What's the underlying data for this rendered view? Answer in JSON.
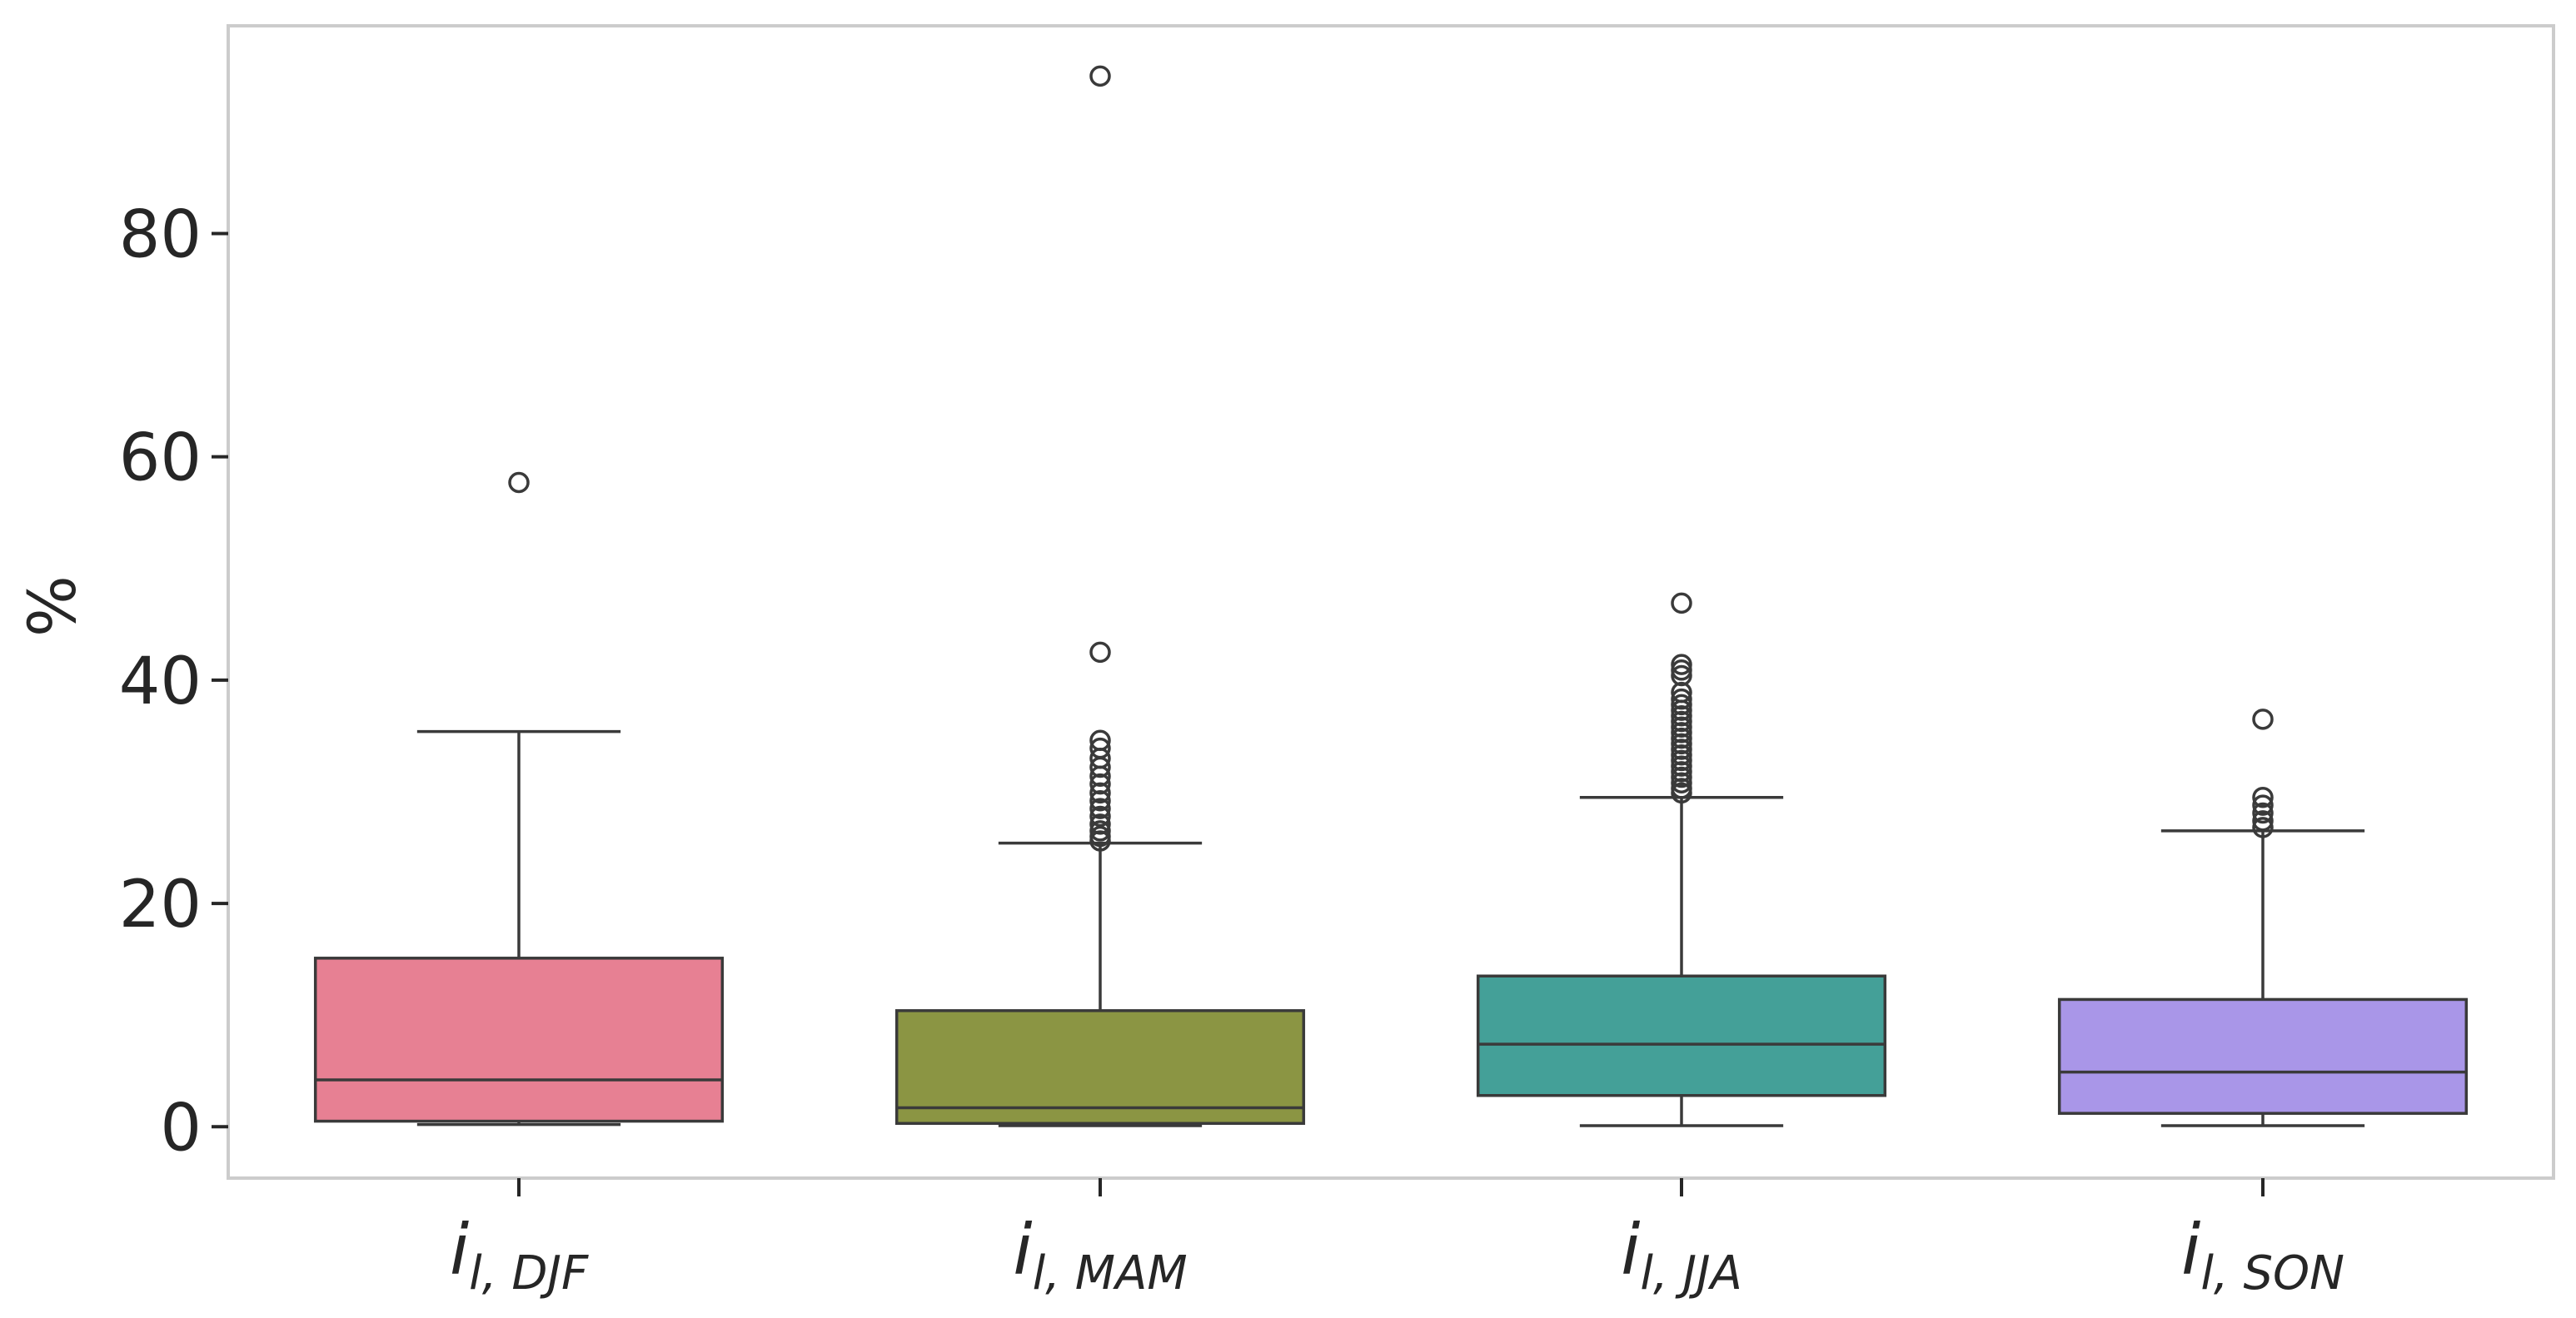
{
  "chart_data": {
    "type": "box",
    "title": "",
    "xlabel": "",
    "ylabel": "%",
    "ylim": [
      -4.6,
      98.6
    ],
    "yticks": [
      0,
      20,
      40,
      60,
      80
    ],
    "grid": false,
    "legend": "none",
    "categories": [
      {
        "main": "i",
        "sub": "l, DJF"
      },
      {
        "main": "i",
        "sub": "l, MAM"
      },
      {
        "main": "i",
        "sub": "l, JJA"
      },
      {
        "main": "i",
        "sub": "l, SON"
      }
    ],
    "series": [
      {
        "color": "#e78093",
        "whisker_low": 0.2,
        "q1": 0.5,
        "median": 4.2,
        "q3": 15.1,
        "whisker_high": 35.4,
        "outliers": [
          57.7
        ]
      },
      {
        "color": "#8b9543",
        "whisker_low": 0.1,
        "q1": 0.3,
        "median": 1.7,
        "q3": 10.4,
        "whisker_high": 25.4,
        "outliers": [
          94.1,
          42.5,
          34.6,
          33.9,
          33.0,
          32.2,
          31.4,
          30.7,
          29.9,
          29.2,
          28.5,
          27.8,
          27.1,
          26.5,
          26.0,
          25.6
        ]
      },
      {
        "color": "#44a098",
        "whisker_low": 0.1,
        "q1": 2.8,
        "median": 7.4,
        "q3": 13.5,
        "whisker_high": 29.5,
        "outliers": [
          46.9,
          41.4,
          40.9,
          40.4,
          38.9,
          38.3,
          37.8,
          37.3,
          36.8,
          36.3,
          35.8,
          35.3,
          34.8,
          34.3,
          33.8,
          33.3,
          32.8,
          32.3,
          31.8,
          31.3,
          30.8,
          30.3,
          29.9
        ]
      },
      {
        "color": "#a996e8",
        "whisker_low": 0.1,
        "q1": 1.2,
        "median": 4.9,
        "q3": 11.4,
        "whisker_high": 26.5,
        "outliers": [
          36.5,
          29.5,
          28.8,
          28.1,
          27.4,
          26.8
        ]
      }
    ]
  }
}
